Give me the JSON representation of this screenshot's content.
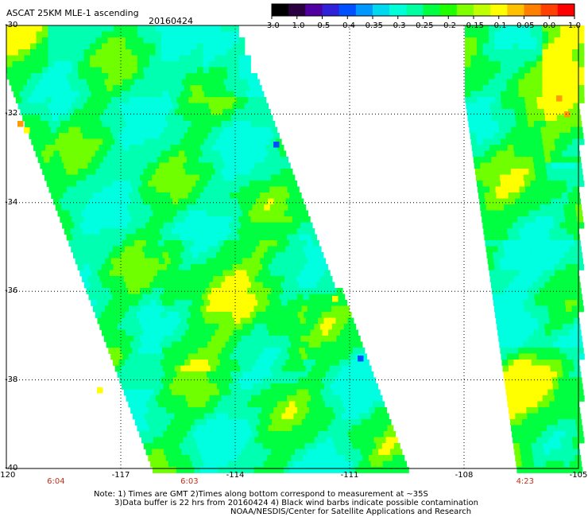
{
  "header": {
    "title": "ASCAT 25KM MLE-1 ascending",
    "date": "20160424"
  },
  "colorbar": {
    "labels": [
      "-3.0",
      "-1.0",
      "-0.5",
      "-0.4",
      "-0.35",
      "-0.3",
      "-0.25",
      "-0.2",
      "-0.15",
      "-0.1",
      "-0.05",
      "0.0",
      "1.0"
    ],
    "colors": [
      "#000000",
      "#2a0040",
      "#5000a0",
      "#3020d8",
      "#0050ff",
      "#0098ff",
      "#00d8f0",
      "#00ffd8",
      "#00ffa0",
      "#00ff40",
      "#20ff00",
      "#80ff00",
      "#c0ff00",
      "#ffff00",
      "#ffc000",
      "#ff8000",
      "#ff4000",
      "#ff0000"
    ]
  },
  "axes": {
    "y_ticks": [
      "-30",
      "-32",
      "-34",
      "-36",
      "-38",
      "-40"
    ],
    "x_ticks": [
      "-120",
      "-117",
      "-114",
      "-111",
      "-108",
      "-105"
    ]
  },
  "map_data": {
    "lat_range": [
      -40,
      -30
    ],
    "lon_range": [
      -120,
      -105
    ],
    "swaths": [
      {
        "time": "6:04",
        "lon": -118.7
      },
      {
        "time": "6:03",
        "lon": -115.2
      },
      {
        "time": "4:23",
        "lon": -106.4
      }
    ],
    "palette": {
      "cyan": "#00ffe0",
      "teal": "#00ffb0",
      "green": "#00ff40",
      "lime": "#70ff00",
      "yellow": "#ffff00",
      "orange": "#ff9a00",
      "blue": "#0050ff"
    }
  },
  "footer": {
    "note1": "Note: 1) Times are GMT 2)Times along bottom correspond to measurement at ~35S",
    "note2": "3)Data buffer is 22 hrs from 20160424 4) Black wind barbs indicate possible contamination",
    "note3": "NOAA/NESDIS/Center for Satellite Applications and Research"
  }
}
